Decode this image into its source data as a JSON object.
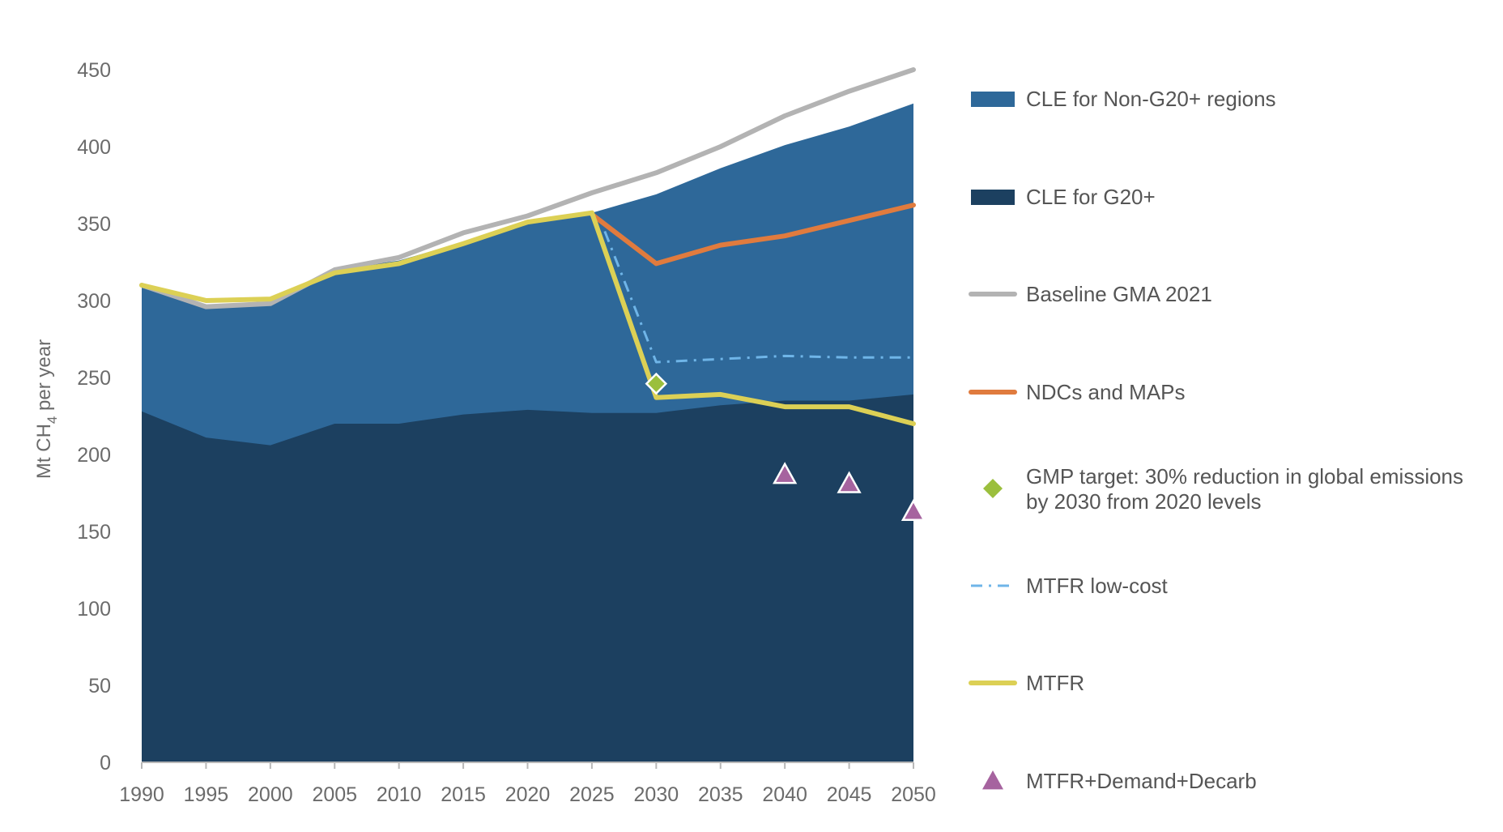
{
  "chart_data": {
    "type": "area",
    "x": [
      1990,
      1995,
      2000,
      2005,
      2010,
      2015,
      2020,
      2025,
      2030,
      2035,
      2040,
      2045,
      2050
    ],
    "ylabel": {
      "main": "Mt CH",
      "sub": "4",
      "tail": " per year"
    },
    "xlabel": "",
    "ylim": [
      0,
      450
    ],
    "yticks": [
      0,
      50,
      100,
      150,
      200,
      250,
      300,
      350,
      400,
      450
    ],
    "grid": false,
    "legend_position": "right",
    "areas": [
      {
        "key": "g20",
        "name": "CLE for G20+",
        "color": "#1c4060",
        "values": [
          228,
          211,
          206,
          220,
          220,
          226,
          229,
          227,
          227,
          232,
          235,
          235,
          239
        ]
      },
      {
        "key": "nong20",
        "name": "CLE for Non-G20+ regions",
        "color": "#2e6899",
        "values": [
          310,
          296,
          298,
          320,
          326,
          338,
          350,
          357,
          369,
          386,
          401,
          413,
          428
        ]
      }
    ],
    "lines": [
      {
        "key": "baseline",
        "name": "Baseline GMA 2021",
        "color": "#b3b3b3",
        "style": "solid",
        "x": [
          1990,
          1995,
          2000,
          2005,
          2010,
          2015,
          2020,
          2025,
          2030,
          2035,
          2040,
          2045,
          2050
        ],
        "values": [
          310,
          296,
          298,
          320,
          328,
          344,
          355,
          370,
          383,
          400,
          420,
          436,
          450
        ]
      },
      {
        "key": "ndc",
        "name": "NDCs and MAPs",
        "color": "#e07b3e",
        "style": "solid",
        "x": [
          2025,
          2030,
          2035,
          2040,
          2045,
          2050
        ],
        "values": [
          356,
          324,
          336,
          342,
          352,
          362
        ]
      },
      {
        "key": "mtfr_low",
        "name": "MTFR low-cost",
        "color": "#6fb5e8",
        "style": "dashdot",
        "x": [
          2026,
          2030,
          2035,
          2040,
          2045,
          2050
        ],
        "values": [
          345,
          260,
          262,
          264,
          263,
          263
        ]
      },
      {
        "key": "mtfr",
        "name": "MTFR",
        "color": "#dcd055",
        "style": "solid",
        "x": [
          1990,
          1995,
          2000,
          2005,
          2010,
          2015,
          2020,
          2025,
          2030,
          2035,
          2040,
          2045,
          2050
        ],
        "values": [
          310,
          300,
          301,
          318,
          324,
          337,
          351,
          357,
          237,
          239,
          231,
          231,
          220
        ]
      }
    ],
    "markers": [
      {
        "key": "gmp",
        "name_lines": [
          "GMP target: 30% reduction in global emissions",
          "by 2030 from 2020 levels"
        ],
        "shape": "diamond",
        "color": "#9bbf3d",
        "points": [
          {
            "x": 2030,
            "y": 246
          }
        ]
      },
      {
        "key": "decarb",
        "name_lines": [
          "MTFR+Demand+Decarb"
        ],
        "shape": "triangle",
        "color": "#a6639f",
        "points": [
          {
            "x": 2040,
            "y": 187
          },
          {
            "x": 2045,
            "y": 181
          },
          {
            "x": 2050,
            "y": 163
          }
        ]
      }
    ],
    "legend": [
      {
        "key": "nong20",
        "kind": "patch",
        "color": "#2e6899",
        "label_lines": [
          "CLE for Non-G20+ regions"
        ]
      },
      {
        "key": "g20",
        "kind": "patch",
        "color": "#1c4060",
        "label_lines": [
          "CLE for G20+"
        ]
      },
      {
        "key": "baseline",
        "kind": "line",
        "color": "#b3b3b3",
        "label_lines": [
          "Baseline GMA 2021"
        ]
      },
      {
        "key": "ndc",
        "kind": "line",
        "color": "#e07b3e",
        "label_lines": [
          "NDCs and MAPs"
        ]
      },
      {
        "key": "gmp",
        "kind": "diamond",
        "color": "#9bbf3d",
        "label_lines": [
          "GMP target: 30% reduction in global emissions",
          "by 2030 from 2020 levels"
        ]
      },
      {
        "key": "mtfr_low",
        "kind": "dashdot",
        "color": "#6fb5e8",
        "label_lines": [
          "MTFR low-cost"
        ]
      },
      {
        "key": "mtfr",
        "kind": "line",
        "color": "#dcd055",
        "label_lines": [
          "MTFR"
        ]
      },
      {
        "key": "decarb",
        "kind": "triangle",
        "color": "#a6639f",
        "label_lines": [
          "MTFR+Demand+Decarb"
        ]
      }
    ]
  }
}
